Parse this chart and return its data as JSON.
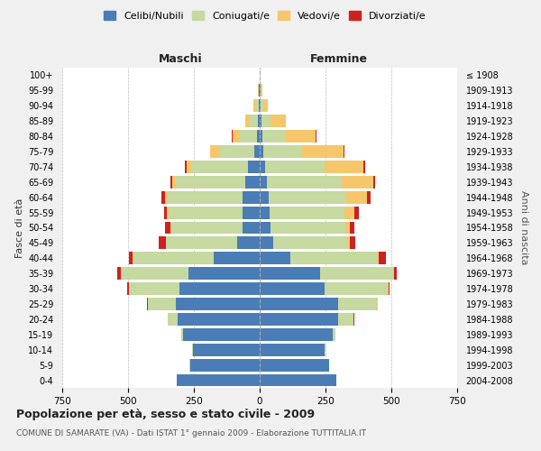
{
  "age_groups": [
    "0-4",
    "5-9",
    "10-14",
    "15-19",
    "20-24",
    "25-29",
    "30-34",
    "35-39",
    "40-44",
    "45-49",
    "50-54",
    "55-59",
    "60-64",
    "65-69",
    "70-74",
    "75-79",
    "80-84",
    "85-89",
    "90-94",
    "95-99",
    "100+"
  ],
  "birth_years": [
    "2004-2008",
    "1999-2003",
    "1994-1998",
    "1989-1993",
    "1984-1988",
    "1979-1983",
    "1974-1978",
    "1969-1973",
    "1964-1968",
    "1959-1963",
    "1954-1958",
    "1949-1953",
    "1944-1948",
    "1939-1943",
    "1934-1938",
    "1929-1933",
    "1924-1928",
    "1919-1923",
    "1914-1918",
    "1909-1913",
    "≤ 1908"
  ],
  "maschi": {
    "celibi": [
      315,
      265,
      255,
      290,
      310,
      320,
      305,
      270,
      175,
      85,
      65,
      65,
      65,
      55,
      45,
      20,
      10,
      8,
      5,
      2,
      0
    ],
    "coniugati": [
      0,
      1,
      2,
      8,
      38,
      105,
      190,
      255,
      305,
      270,
      272,
      282,
      285,
      265,
      215,
      135,
      65,
      28,
      10,
      3,
      0
    ],
    "vedovi": [
      0,
      0,
      0,
      0,
      1,
      1,
      2,
      2,
      2,
      2,
      3,
      5,
      8,
      12,
      18,
      32,
      28,
      18,
      8,
      2,
      0
    ],
    "divorziati": [
      0,
      0,
      0,
      0,
      1,
      2,
      7,
      13,
      16,
      28,
      18,
      11,
      14,
      8,
      5,
      3,
      2,
      0,
      0,
      0,
      0
    ]
  },
  "femmine": {
    "nubili": [
      292,
      262,
      248,
      278,
      298,
      298,
      248,
      228,
      118,
      52,
      42,
      38,
      33,
      28,
      22,
      12,
      10,
      7,
      4,
      2,
      0
    ],
    "coniugate": [
      0,
      1,
      3,
      10,
      58,
      148,
      238,
      278,
      328,
      282,
      282,
      285,
      295,
      285,
      225,
      150,
      85,
      35,
      10,
      4,
      0
    ],
    "vedove": [
      0,
      0,
      0,
      0,
      1,
      2,
      3,
      4,
      5,
      8,
      18,
      38,
      78,
      118,
      148,
      158,
      118,
      58,
      18,
      5,
      0
    ],
    "divorziate": [
      0,
      0,
      0,
      0,
      1,
      2,
      5,
      10,
      28,
      22,
      16,
      14,
      14,
      7,
      4,
      2,
      2,
      0,
      0,
      0,
      0
    ]
  },
  "colors": {
    "celibi": "#4a7db5",
    "coniugati": "#c5d9a0",
    "vedovi": "#f5c76a",
    "divorziati": "#cc2222"
  },
  "xlim": 750,
  "title": "Popolazione per età, sesso e stato civile - 2009",
  "subtitle": "COMUNE DI SAMARATE (VA) - Dati ISTAT 1° gennaio 2009 - Elaborazione TUTTITALIA.IT",
  "legend_labels": [
    "Celibi/Nubili",
    "Coniugati/e",
    "Vedovi/e",
    "Divorziati/e"
  ],
  "ylabel_left": "Fasce di età",
  "ylabel_right": "Anni di nascita",
  "label_maschi": "Maschi",
  "label_femmine": "Femmine",
  "bg_color": "#f0f0f0",
  "plot_bg_color": "#ffffff"
}
